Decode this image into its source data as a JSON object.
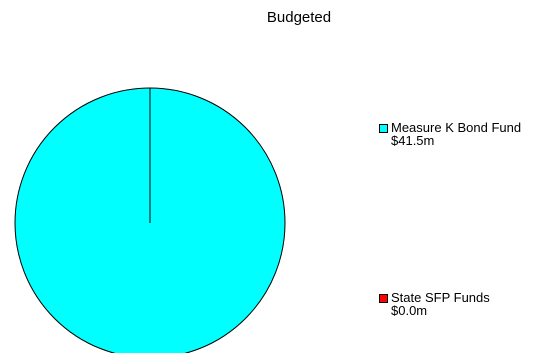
{
  "chart_data": {
    "type": "pie",
    "title": "Budgeted",
    "slices": [
      {
        "label": "Measure K Bond Fund",
        "value_text": "$41.5m",
        "value": 41.5,
        "color": "#00ffff"
      },
      {
        "label": "State SFP Funds",
        "value_text": "$0.0m",
        "value": 0.0,
        "color": "#ff0000"
      }
    ],
    "legend": "right"
  }
}
